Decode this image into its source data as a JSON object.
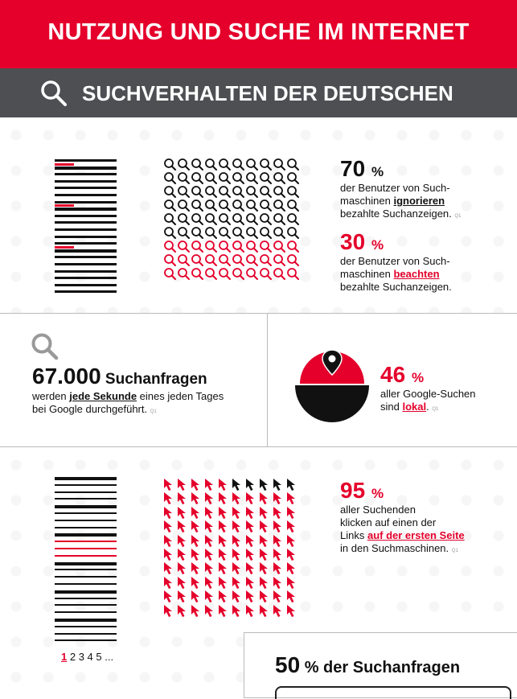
{
  "header": {
    "title": "NUTZUNG UND SUCHE IM INTERNET"
  },
  "subheader": {
    "title": "SUCHVERHALTEN DER DEUTSCHEN",
    "icon": "search-icon"
  },
  "colors": {
    "accent": "#e4002b",
    "dark": "#4d4f53",
    "text": "#111111"
  },
  "section1": {
    "stat_a": {
      "value": "70",
      "unit": "%",
      "line1": "der Benutzer von Such-",
      "line2_pre": "maschinen ",
      "line2_em": "ignorieren",
      "line3": "bezahlte Suchanzeigen.",
      "footnote": "Q1"
    },
    "stat_b": {
      "value": "30",
      "unit": "%",
      "line1": "der Benutzer von Such-",
      "line2_pre": "maschinen ",
      "line2_em": "beachten",
      "line3": "bezahlte Suchanzeigen."
    },
    "grid": {
      "cols": 10,
      "rows": 9,
      "black_rows": 6,
      "red_rows": 3
    }
  },
  "section2": {
    "left": {
      "value": "67.000",
      "label": " Suchanfragen",
      "line1_pre": "werden ",
      "line1_em": "jede Sekunde",
      "line1_post": " eines jeden Tages",
      "line2": "bei Google durchgeführt.",
      "footnote": "Q1"
    },
    "right": {
      "value": "46",
      "unit": "%",
      "line1": "aller Google-Suchen",
      "line2_pre": "sind ",
      "line2_em": "lokal",
      "line2_post": ".",
      "footnote": "Q1"
    },
    "lokal_share": 0.46
  },
  "section3": {
    "stat": {
      "value": "95",
      "unit": "%",
      "line1": "aller Suchenden",
      "line2": "klicken auf einen der",
      "line3_pre": "Links ",
      "line3_em": "auf der ersten Seite",
      "line4": "in den Suchmaschinen.",
      "footnote": "Q1"
    },
    "pagination": {
      "current": "1",
      "rest": "2 3 4 5 ..."
    },
    "grid": {
      "cols": 10,
      "rows": 10,
      "black_top": 5
    }
  },
  "section4": {
    "value": "50",
    "label": " % der Suchanfragen"
  }
}
